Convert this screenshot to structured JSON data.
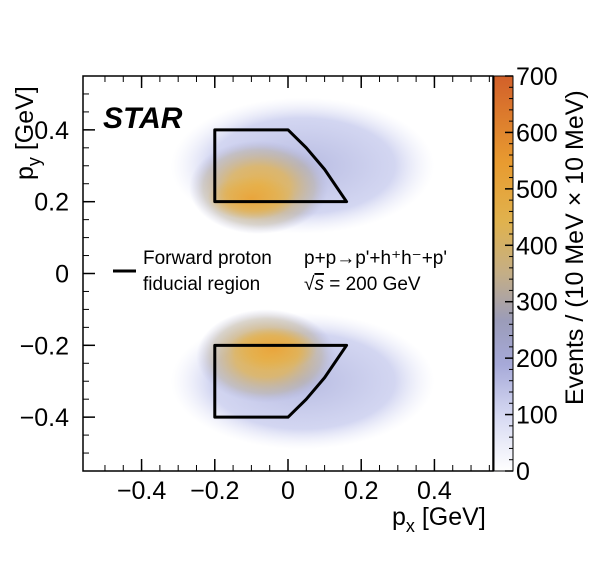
{
  "chart_data": {
    "type": "heatmap",
    "experiment_label": "STAR",
    "xlabel": "p",
    "xlabel_sub": "x",
    "xlabel_unit": " [GeV]",
    "ylabel": "p",
    "ylabel_sub": "y",
    "ylabel_unit": " [GeV]",
    "zlabel": "Events / (10 MeV × 10 MeV)",
    "xlim": [
      -0.56,
      0.56
    ],
    "ylim": [
      -0.55,
      0.55
    ],
    "zlim": [
      0,
      700
    ],
    "x_ticks": [
      "−0.4",
      "−0.2",
      "0",
      "0.2",
      "0.4"
    ],
    "x_tick_values": [
      -0.4,
      -0.2,
      0,
      0.2,
      0.4
    ],
    "y_ticks": [
      "0.4",
      "0.2",
      "0",
      "−0.2",
      "−0.4"
    ],
    "y_tick_values": [
      0.4,
      0.2,
      0,
      -0.2,
      -0.4
    ],
    "z_ticks": [
      "700",
      "600",
      "500",
      "400",
      "300",
      "200",
      "100",
      "0"
    ],
    "z_tick_values": [
      700,
      600,
      500,
      400,
      300,
      200,
      100,
      0
    ],
    "legend": {
      "entry_line1": "Forward proton",
      "entry_line2": "fiducial region"
    },
    "annotation": {
      "process": "p+p→p'+h⁺h⁻+p'",
      "energy_prefix": "√",
      "energy_var": "s",
      "energy_value": " = 200 GeV"
    },
    "fiducial_region_upper": [
      [
        -0.2,
        0.4
      ],
      [
        0.0,
        0.4
      ],
      [
        0.05,
        0.35
      ],
      [
        0.1,
        0.29
      ],
      [
        0.16,
        0.2
      ],
      [
        -0.2,
        0.2
      ]
    ],
    "fiducial_region_lower": [
      [
        -0.2,
        -0.2
      ],
      [
        0.16,
        -0.2
      ],
      [
        0.1,
        -0.29
      ],
      [
        0.05,
        -0.35
      ],
      [
        0.0,
        -0.4
      ],
      [
        -0.2,
        -0.4
      ]
    ],
    "density_regions": [
      {
        "name": "upper-envelope",
        "cx": 0.04,
        "cy": 0.3,
        "level": 60
      },
      {
        "name": "upper-core",
        "cx": -0.08,
        "cy": 0.24,
        "level": 470
      },
      {
        "name": "upper-peak",
        "cx": -0.1,
        "cy": 0.21,
        "level": 520
      },
      {
        "name": "lower-envelope",
        "cx": 0.04,
        "cy": -0.3,
        "level": 60
      },
      {
        "name": "lower-core",
        "cx": -0.06,
        "cy": -0.23,
        "level": 480
      },
      {
        "name": "lower-peak",
        "cx": -0.04,
        "cy": -0.21,
        "level": 560
      }
    ],
    "colors": {
      "scale": [
        "#ffffff",
        "#d4d8f2",
        "#a9acd9",
        "#9a9bbd",
        "#c4b08a",
        "#e0b24e",
        "#e89a2e",
        "#d4632a"
      ],
      "frame": "#000000"
    }
  }
}
